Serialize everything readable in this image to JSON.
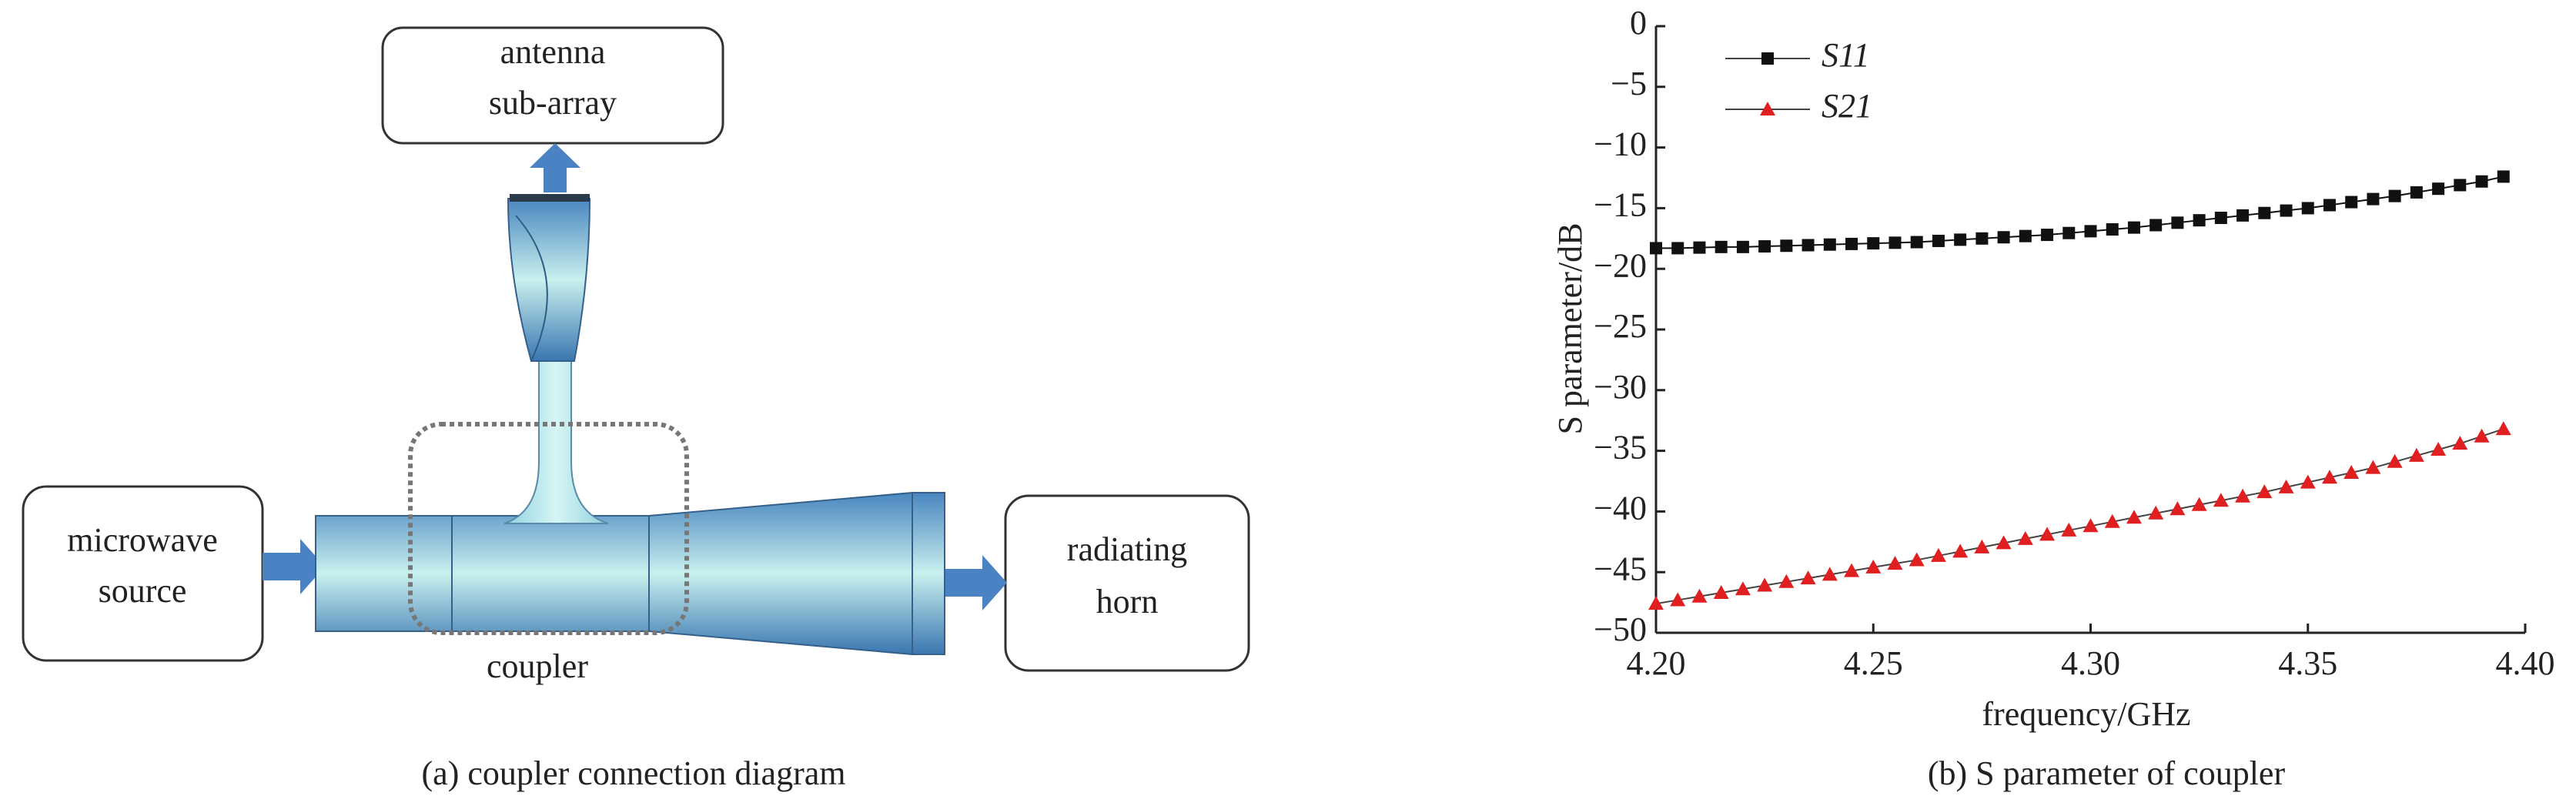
{
  "diagram": {
    "antenna_box": [
      "antenna",
      "sub-array"
    ],
    "source_box": [
      "microwave",
      "source"
    ],
    "horn_box": [
      "radiating",
      "horn"
    ],
    "coupler_label": "coupler",
    "caption": "(a) coupler connection diagram"
  },
  "chart_data": {
    "type": "line",
    "caption": "(b) S parameter of coupler",
    "xlabel": "frequency/GHz",
    "ylabel": "S parameter/dB",
    "x": [
      4.2,
      4.205,
      4.21,
      4.215,
      4.22,
      4.225,
      4.23,
      4.235,
      4.24,
      4.245,
      4.25,
      4.255,
      4.26,
      4.265,
      4.27,
      4.275,
      4.28,
      4.285,
      4.29,
      4.295,
      4.3,
      4.305,
      4.31,
      4.315,
      4.32,
      4.325,
      4.33,
      4.335,
      4.34,
      4.345,
      4.35,
      4.355,
      4.36,
      4.365,
      4.37,
      4.375,
      4.38,
      4.385,
      4.39,
      4.395
    ],
    "series": [
      {
        "name": "S11",
        "color": "#111111",
        "marker": "square",
        "values": [
          -18.3,
          -18.3,
          -18.25,
          -18.2,
          -18.2,
          -18.15,
          -18.1,
          -18.05,
          -18.0,
          -17.95,
          -17.9,
          -17.85,
          -17.8,
          -17.7,
          -17.6,
          -17.5,
          -17.4,
          -17.3,
          -17.2,
          -17.05,
          -16.9,
          -16.75,
          -16.6,
          -16.4,
          -16.2,
          -16.0,
          -15.8,
          -15.6,
          -15.4,
          -15.2,
          -15.0,
          -14.75,
          -14.5,
          -14.25,
          -14.0,
          -13.7,
          -13.4,
          -13.1,
          -12.8,
          -12.4
        ]
      },
      {
        "name": "S21",
        "color": "#e02020",
        "marker": "triangle",
        "values": [
          -47.6,
          -47.3,
          -47.0,
          -46.7,
          -46.4,
          -46.1,
          -45.8,
          -45.5,
          -45.2,
          -44.9,
          -44.6,
          -44.3,
          -44.0,
          -43.65,
          -43.3,
          -42.95,
          -42.6,
          -42.25,
          -41.9,
          -41.55,
          -41.2,
          -40.85,
          -40.5,
          -40.15,
          -39.8,
          -39.45,
          -39.1,
          -38.75,
          -38.4,
          -38.0,
          -37.6,
          -37.2,
          -36.8,
          -36.4,
          -35.9,
          -35.4,
          -34.9,
          -34.4,
          -33.8,
          -33.2
        ]
      }
    ],
    "xlim": [
      4.2,
      4.4
    ],
    "xticks": [
      {
        "value": 4.2,
        "label": "4.20"
      },
      {
        "value": 4.25,
        "label": "4.25"
      },
      {
        "value": 4.3,
        "label": "4.30"
      },
      {
        "value": 4.35,
        "label": "4.35"
      },
      {
        "value": 4.4,
        "label": "4.40"
      }
    ],
    "ylim": [
      -50,
      0
    ],
    "yticks": [
      0,
      {
        "value": -5,
        "label": "−5"
      },
      {
        "value": -10,
        "label": "−10"
      },
      {
        "value": -15,
        "label": "−15"
      },
      {
        "value": -20,
        "label": "−20"
      },
      {
        "value": -25,
        "label": "−25"
      },
      {
        "value": -30,
        "label": "−30"
      },
      {
        "value": -35,
        "label": "−35"
      },
      {
        "value": -40,
        "label": "−40"
      },
      {
        "value": -45,
        "label": "−45"
      },
      {
        "value": -50,
        "label": "−50"
      }
    ],
    "legend": "upper left"
  }
}
